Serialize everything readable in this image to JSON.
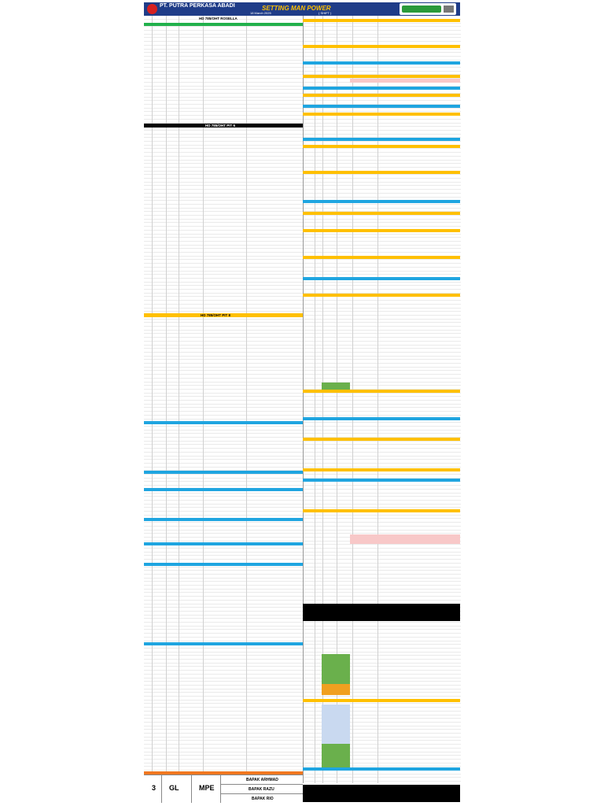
{
  "header": {
    "company": "PT. PUTRA PERKASA ABADI",
    "title": "SETTING MAN POWER",
    "date": "18 March 2025",
    "shift": "( SHIFT )"
  },
  "sections": [
    "HD 785/OHT ROSELLA",
    "HD 785/OHT PIT 6",
    "HD 785/OHT PIT 8"
  ],
  "footer": {
    "count": "3",
    "role": "GL",
    "dept": "MPE",
    "names": [
      "BAPAK ARHMAD",
      "BAPAK RAZU",
      "BAPAK RIO"
    ]
  }
}
